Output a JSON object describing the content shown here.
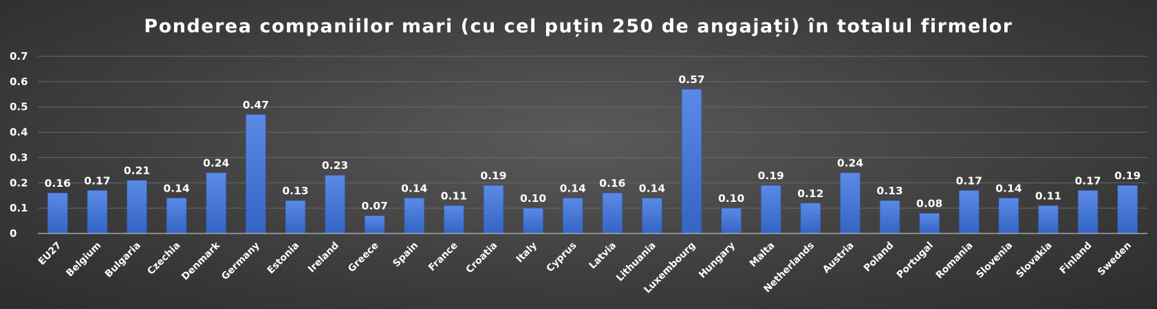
{
  "chart_data": {
    "type": "bar",
    "title": "Ponderea companiilor mari (cu cel puțin 250 de angajați) în totalul firmelor",
    "xlabel": "",
    "ylabel": "",
    "ylim": [
      0,
      0.7
    ],
    "yticks": [
      "0",
      "0.1",
      "0.2",
      "0.3",
      "0.4",
      "0.5",
      "0.6",
      "0.7"
    ],
    "grid": true,
    "legend": "none",
    "bar_color": "#4a7bd6",
    "categories": [
      "EU27",
      "Belgium",
      "Bulgaria",
      "Czechia",
      "Denmark",
      "Germany",
      "Estonia",
      "Ireland",
      "Greece",
      "Spain",
      "France",
      "Croatia",
      "Italy",
      "Cyprus",
      "Latvia",
      "Lithuania",
      "Luxembourg",
      "Hungary",
      "Malta",
      "Netherlands",
      "Austria",
      "Poland",
      "Portugal",
      "Romania",
      "Slovenia",
      "Slovakia",
      "Finland",
      "Sweden"
    ],
    "values": [
      0.16,
      0.17,
      0.21,
      0.14,
      0.24,
      0.47,
      0.13,
      0.23,
      0.07,
      0.14,
      0.11,
      0.19,
      0.1,
      0.14,
      0.16,
      0.14,
      0.57,
      0.1,
      0.19,
      0.12,
      0.24,
      0.13,
      0.08,
      0.17,
      0.14,
      0.11,
      0.17,
      0.19
    ],
    "data_labels": [
      "0.16",
      "0.17",
      "0.21",
      "0.14",
      "0.24",
      "0.47",
      "0.13",
      "0.23",
      "0.07",
      "0.14",
      "0.11",
      "0.19",
      "0.10",
      "0.14",
      "0.16",
      "0.14",
      "0.57",
      "0.10",
      "0.19",
      "0.12",
      "0.24",
      "0.13",
      "0.08",
      "0.17",
      "0.14",
      "0.11",
      "0.17",
      "0.19"
    ]
  }
}
